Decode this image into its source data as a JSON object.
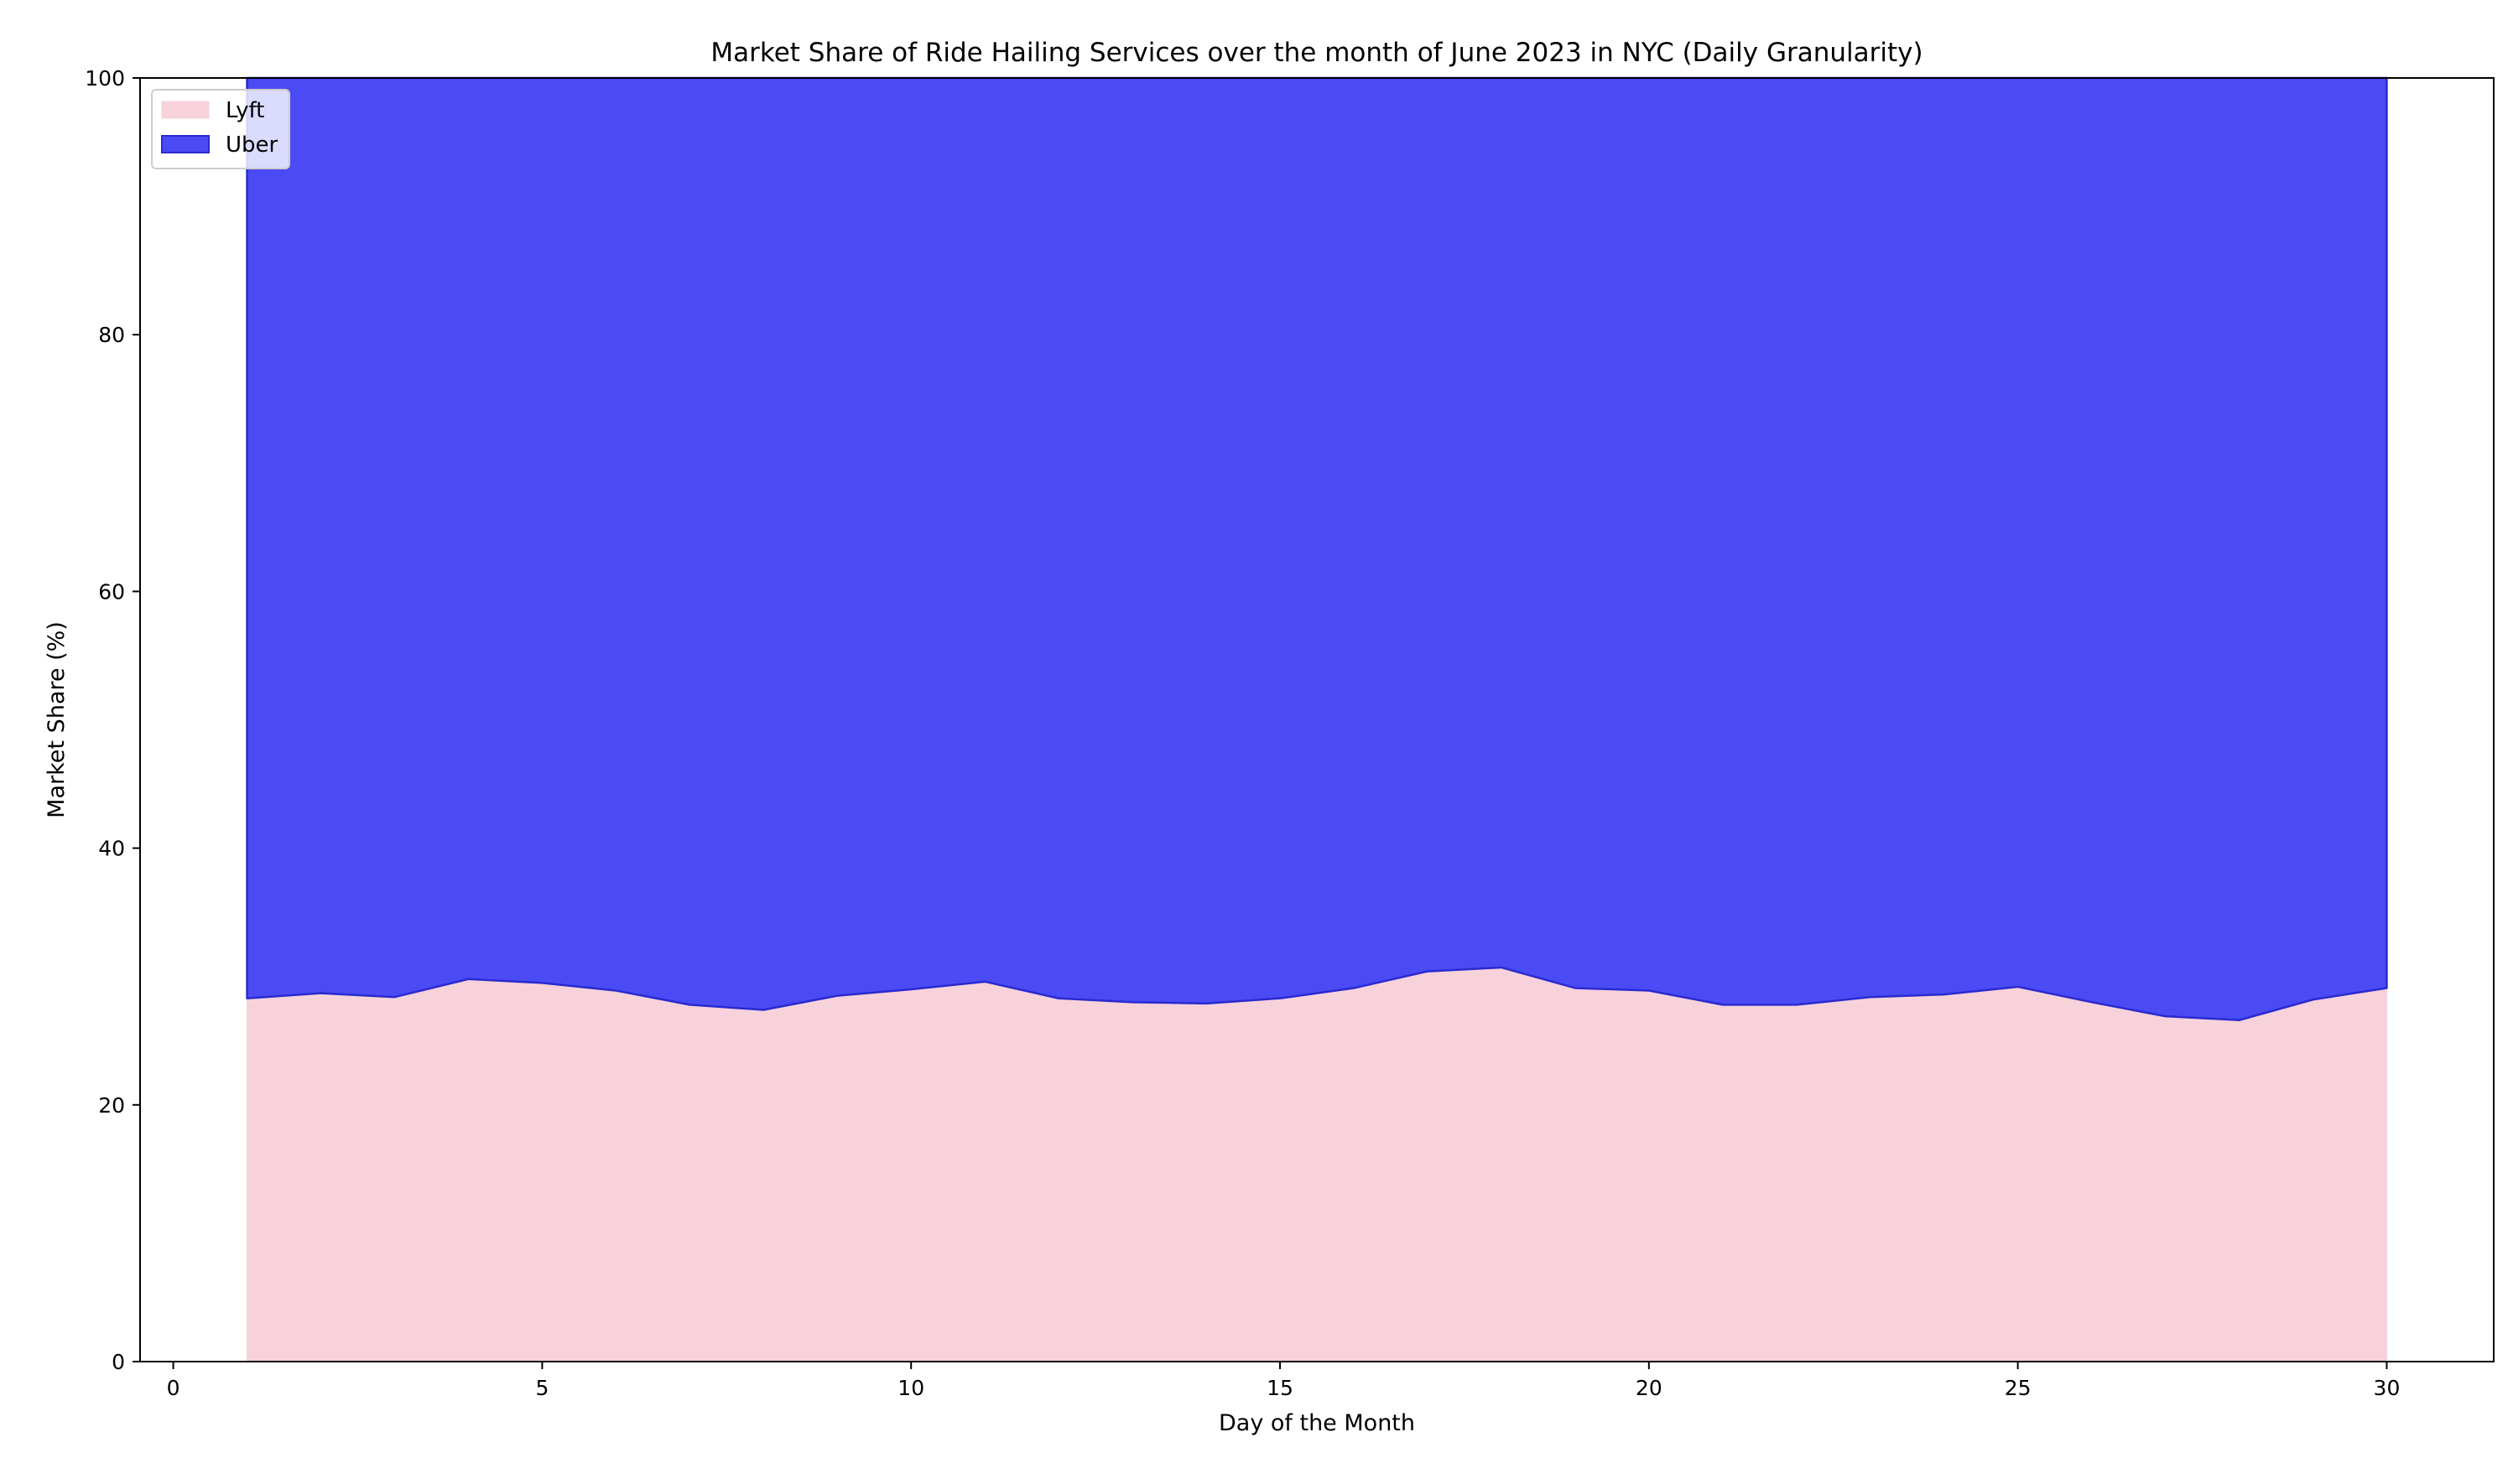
{
  "chart_data": {
    "type": "area",
    "stacked": true,
    "title": "Market Share of Ride Hailing Services over the month of June 2023 in NYC (Daily Granularity)",
    "xlabel": "Day of the Month",
    "ylabel": "Market Share (%)",
    "x": [
      1,
      2,
      3,
      4,
      5,
      6,
      7,
      8,
      9,
      10,
      11,
      12,
      13,
      14,
      15,
      16,
      17,
      18,
      19,
      20,
      21,
      22,
      23,
      24,
      25,
      26,
      27,
      28,
      29,
      30
    ],
    "series": [
      {
        "name": "Lyft",
        "color": "#f7d2da",
        "edge_color": "#f7d2da",
        "values": [
          28.3,
          28.7,
          28.4,
          29.8,
          29.5,
          28.9,
          27.8,
          27.4,
          28.5,
          29.0,
          29.6,
          28.3,
          28.0,
          27.9,
          28.3,
          29.1,
          30.4,
          30.7,
          29.1,
          28.9,
          27.8,
          27.8,
          28.4,
          28.6,
          29.2,
          28.0,
          26.9,
          26.6,
          28.2,
          29.1
        ]
      },
      {
        "name": "Uber",
        "color": "#4b4bf5",
        "edge_color": "#2a2ad0",
        "values": [
          71.7,
          71.3,
          71.6,
          70.2,
          70.5,
          71.1,
          72.2,
          72.6,
          71.5,
          71.0,
          70.4,
          71.7,
          72.0,
          72.1,
          71.7,
          70.9,
          69.6,
          69.3,
          70.9,
          71.1,
          72.2,
          72.2,
          71.6,
          71.4,
          70.8,
          72.0,
          73.1,
          73.4,
          71.8,
          70.9
        ]
      }
    ],
    "xlim": [
      -0.45,
      31.45
    ],
    "ylim": [
      0,
      100
    ],
    "xticks": [
      0,
      5,
      10,
      15,
      20,
      25,
      30
    ],
    "yticks": [
      0,
      20,
      40,
      60,
      80,
      100
    ],
    "grid": false,
    "legend_position": "upper-left"
  }
}
